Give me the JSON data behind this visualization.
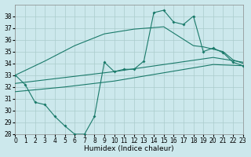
{
  "bg_color": "#cce8ec",
  "grid_color": "#aacccc",
  "line_color": "#1a7a6a",
  "xlim": [
    0,
    23
  ],
  "ylim": [
    28,
    39
  ],
  "xticks": [
    0,
    1,
    2,
    3,
    4,
    5,
    6,
    7,
    8,
    9,
    10,
    11,
    12,
    13,
    14,
    15,
    16,
    17,
    18,
    19,
    20,
    21,
    22,
    23
  ],
  "yticks": [
    28,
    29,
    30,
    31,
    32,
    33,
    34,
    35,
    36,
    37,
    38
  ],
  "xlabel": "Humidex (Indice chaleur)",
  "main_x": [
    0,
    1,
    2,
    3,
    4,
    5,
    6,
    7,
    8,
    9,
    10,
    11,
    12,
    13,
    14,
    15,
    16,
    17,
    18,
    19,
    20,
    21,
    22,
    23
  ],
  "main_y": [
    33.0,
    32.2,
    30.7,
    30.5,
    29.5,
    28.7,
    28.0,
    28.0,
    29.5,
    34.1,
    33.3,
    33.5,
    33.5,
    34.2,
    38.3,
    38.5,
    37.5,
    37.3,
    38.0,
    35.0,
    35.3,
    34.9,
    34.1,
    33.8
  ],
  "line_upper_x": [
    0,
    3,
    6,
    9,
    12,
    15,
    18,
    19,
    20,
    21,
    22,
    23
  ],
  "line_upper_y": [
    33.0,
    34.2,
    35.5,
    36.5,
    36.9,
    37.1,
    35.5,
    35.4,
    35.2,
    35.0,
    34.3,
    34.0
  ],
  "line_mid_x": [
    0,
    5,
    10,
    15,
    20,
    23
  ],
  "line_mid_y": [
    32.3,
    32.8,
    33.3,
    33.9,
    34.5,
    34.1
  ],
  "line_low_x": [
    0,
    5,
    10,
    15,
    20,
    23
  ],
  "line_low_y": [
    31.6,
    32.0,
    32.5,
    33.2,
    33.9,
    33.8
  ],
  "tick_fontsize": 5.5,
  "label_fontsize": 6.5
}
